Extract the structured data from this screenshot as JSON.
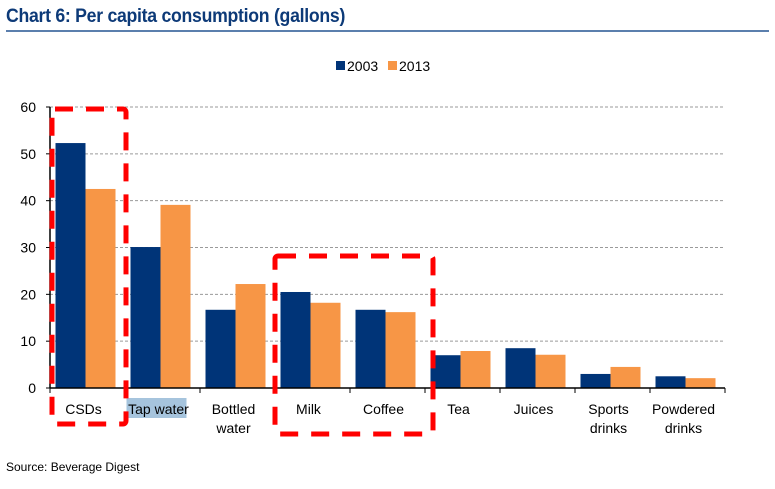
{
  "title": "Chart 6: Per capita consumption (gallons)",
  "source": "Source: Beverage Digest",
  "chart_data": {
    "type": "bar",
    "title": "Chart 6: Per capita consumption (gallons)",
    "xlabel": "",
    "ylabel": "",
    "ylim": [
      0,
      60
    ],
    "yticks": [
      0,
      10,
      20,
      30,
      40,
      50,
      60
    ],
    "grid": true,
    "legend_position": "top-center",
    "categories": [
      [
        "CSDs"
      ],
      [
        "Tap water"
      ],
      [
        "Bottled",
        "water"
      ],
      [
        "Milk"
      ],
      [
        "Coffee"
      ],
      [
        "Tea"
      ],
      [
        "Juices"
      ],
      [
        "Sports",
        "drinks"
      ],
      [
        "Powdered",
        "drinks"
      ]
    ],
    "series": [
      {
        "name": "2003",
        "color": "#003478",
        "values": [
          52.3,
          30.1,
          16.7,
          20.5,
          16.7,
          7.0,
          8.5,
          3.0,
          2.5
        ]
      },
      {
        "name": "2013",
        "color": "#f79646",
        "values": [
          42.5,
          39.1,
          22.2,
          18.2,
          16.2,
          7.9,
          7.1,
          4.5,
          2.1
        ]
      }
    ],
    "annotations": [
      {
        "type": "dashed-box",
        "color": "#ff0000",
        "covers": [
          "CSDs"
        ]
      },
      {
        "type": "dashed-box",
        "color": "#ff0000",
        "covers": [
          "Milk",
          "Coffee"
        ]
      },
      {
        "type": "highlight",
        "color": "#a6c4dd",
        "covers": [
          "Tap water"
        ]
      }
    ]
  }
}
